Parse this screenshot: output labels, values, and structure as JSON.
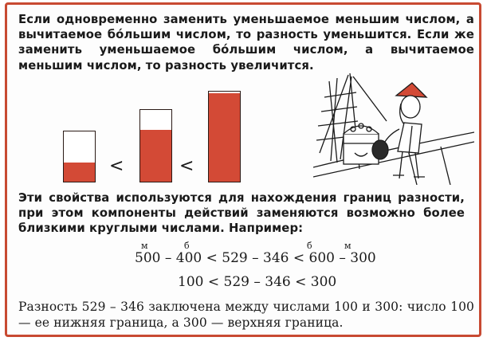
{
  "rule_text": "Если одновременно заменить уменьшаемое меньшим числом, а вычитаемое бо́льшим числом, то разность уменьшится. Если же заменить уменьшаемое бо́льшим числом, а вычитаемое меньшим числом, то разность увеличится.",
  "intro_text": "Эти свойства используются для нахождения границ разности, при этом компоненты действий заменяются возможно более близкими круглыми числами. Например:",
  "diagram": {
    "comparison_1": "<",
    "comparison_2": "<",
    "bars": [
      {
        "fill_fraction": 0.38
      },
      {
        "fill_fraction": 0.72
      },
      {
        "fill_fraction": 0.98
      }
    ]
  },
  "formula_1": {
    "marker_1": "м",
    "marker_2": "б",
    "marker_3": "б",
    "marker_4": "м",
    "text": "500 – 400 < 529 – 346 < 600 – 300"
  },
  "formula_2": {
    "text": "100 < 529 – 346 < 300"
  },
  "conclusion_text": "Разность 529 – 346 заключена между числами 100 и 300: число 100 — ее нижняя граница, а 300 — верхняя граница.",
  "colors": {
    "border": "#c84a32",
    "bar_fill": "#d34a36"
  }
}
